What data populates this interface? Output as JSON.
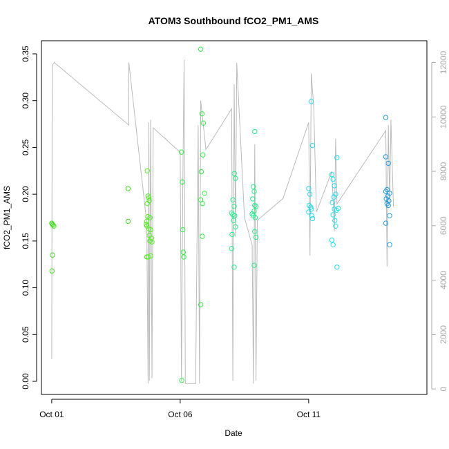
{
  "chart_data": {
    "type": "scatter",
    "title": "ATOM3 Southbound fCO2_PM1_AMS",
    "xlabel": "Date",
    "ylabel": "fCO2_PM1_AMS",
    "x_ticks": [
      "Oct 01",
      "Oct 06",
      "Oct 11"
    ],
    "x_tick_days": [
      1,
      6,
      11
    ],
    "xlim_days": [
      0.6,
      15.6
    ],
    "ylim": [
      -0.014,
      0.364
    ],
    "y_ticks": [
      0.0,
      0.05,
      0.1,
      0.15,
      0.2,
      0.25,
      0.3,
      0.35
    ],
    "y_tick_labels": [
      "0.00",
      "0.05",
      "0.10",
      "0.15",
      "0.20",
      "0.25",
      "0.30",
      "0.35"
    ],
    "secondary_y": {
      "ylim": [
        -200,
        12800
      ],
      "ticks": [
        0,
        2000,
        4000,
        6000,
        8000,
        10000,
        12000
      ],
      "tick_labels": [
        "0",
        "2000",
        "4000",
        "6000",
        "8000",
        "10000",
        "12000"
      ],
      "color": "#aaaaaa"
    },
    "altitude_trace": {
      "color": "#bbbbbb",
      "points": [
        [
          1.0,
          1100
        ],
        [
          1.02,
          11900
        ],
        [
          1.1,
          12000
        ],
        [
          4.0,
          9700
        ],
        [
          4.0,
          12000
        ],
        [
          4.7,
          6100
        ],
        [
          4.75,
          200
        ],
        [
          4.78,
          9800
        ],
        [
          4.8,
          300
        ],
        [
          4.85,
          9900
        ],
        [
          4.9,
          400
        ],
        [
          4.95,
          9600
        ],
        [
          6.0,
          8700
        ],
        [
          6.05,
          300
        ],
        [
          6.1,
          7400
        ],
        [
          6.15,
          12100
        ],
        [
          6.2,
          200
        ],
        [
          6.6,
          200
        ],
        [
          6.7,
          9700
        ],
        [
          6.75,
          200
        ],
        [
          6.8,
          10600
        ],
        [
          7.0,
          8800
        ],
        [
          8.0,
          10300
        ],
        [
          8.05,
          300
        ],
        [
          8.1,
          11200
        ],
        [
          8.15,
          5600
        ],
        [
          8.2,
          12000
        ],
        [
          8.5,
          6300
        ],
        [
          8.8,
          5300
        ],
        [
          8.85,
          200
        ],
        [
          8.9,
          9000
        ],
        [
          8.95,
          300
        ],
        [
          9.0,
          6200
        ],
        [
          10.0,
          7000
        ],
        [
          11.0,
          9800
        ],
        [
          11.05,
          4900
        ],
        [
          11.1,
          11600
        ],
        [
          11.2,
          10300
        ],
        [
          11.3,
          6500
        ],
        [
          11.9,
          8000
        ],
        [
          12.0,
          5800
        ],
        [
          12.05,
          9200
        ],
        [
          12.1,
          6800
        ],
        [
          14.0,
          9500
        ],
        [
          14.05,
          4500
        ],
        [
          14.1,
          9700
        ],
        [
          14.15,
          6800
        ],
        [
          14.2,
          9900
        ],
        [
          14.3,
          6700
        ]
      ]
    },
    "series": [
      {
        "color": "#44dd22",
        "values": [
          [
            1.0,
            0.169
          ],
          [
            1.02,
            0.168
          ],
          [
            1.05,
            0.167
          ],
          [
            1.08,
            0.166
          ],
          [
            1.03,
            0.135
          ],
          [
            1.01,
            0.118
          ],
          [
            3.97,
            0.206
          ],
          [
            3.97,
            0.171
          ]
        ]
      },
      {
        "color": "#55ee22",
        "values": [
          [
            4.72,
            0.225
          ],
          [
            4.75,
            0.198
          ],
          [
            4.78,
            0.196
          ],
          [
            4.8,
            0.193
          ],
          [
            4.72,
            0.19
          ],
          [
            4.74,
            0.176
          ],
          [
            4.82,
            0.175
          ],
          [
            4.7,
            0.171
          ],
          [
            4.68,
            0.168
          ],
          [
            4.7,
            0.166
          ],
          [
            4.78,
            0.163
          ],
          [
            4.85,
            0.162
          ],
          [
            4.8,
            0.156
          ],
          [
            4.88,
            0.153
          ],
          [
            4.82,
            0.15
          ],
          [
            4.9,
            0.149
          ],
          [
            4.7,
            0.133
          ],
          [
            4.75,
            0.133
          ],
          [
            4.85,
            0.134
          ]
        ]
      },
      {
        "color": "#33ee44",
        "values": [
          [
            6.05,
            0.245
          ],
          [
            6.08,
            0.213
          ],
          [
            6.1,
            0.162
          ],
          [
            6.12,
            0.138
          ],
          [
            6.14,
            0.133
          ],
          [
            6.06,
            0.001
          ],
          [
            6.8,
            0.355
          ],
          [
            6.85,
            0.286
          ],
          [
            6.9,
            0.276
          ],
          [
            6.88,
            0.242
          ],
          [
            6.82,
            0.224
          ],
          [
            6.95,
            0.201
          ],
          [
            6.8,
            0.194
          ],
          [
            6.87,
            0.19
          ],
          [
            6.86,
            0.155
          ],
          [
            6.8,
            0.082
          ]
        ]
      },
      {
        "color": "#22ee88",
        "values": [
          [
            8.1,
            0.222
          ],
          [
            8.15,
            0.217
          ],
          [
            8.05,
            0.194
          ],
          [
            8.1,
            0.187
          ],
          [
            8.0,
            0.18
          ],
          [
            8.05,
            0.178
          ],
          [
            8.12,
            0.177
          ],
          [
            8.08,
            0.172
          ],
          [
            8.15,
            0.165
          ],
          [
            8.02,
            0.157
          ],
          [
            8.0,
            0.142
          ],
          [
            8.1,
            0.122
          ],
          [
            8.9,
            0.267
          ],
          [
            8.85,
            0.208
          ],
          [
            8.88,
            0.203
          ],
          [
            8.82,
            0.195
          ],
          [
            8.9,
            0.188
          ],
          [
            8.95,
            0.187
          ],
          [
            8.88,
            0.182
          ],
          [
            8.8,
            0.179
          ],
          [
            8.85,
            0.177
          ],
          [
            8.92,
            0.175
          ],
          [
            8.9,
            0.16
          ],
          [
            8.95,
            0.154
          ],
          [
            8.88,
            0.124
          ]
        ]
      },
      {
        "color": "#22ddee",
        "values": [
          [
            11.1,
            0.299
          ],
          [
            11.15,
            0.252
          ],
          [
            11.0,
            0.206
          ],
          [
            11.05,
            0.2
          ],
          [
            11.02,
            0.188
          ],
          [
            11.08,
            0.186
          ],
          [
            11.1,
            0.184
          ],
          [
            11.0,
            0.181
          ],
          [
            11.12,
            0.177
          ],
          [
            11.15,
            0.174
          ],
          [
            11.9,
            0.221
          ],
          [
            11.95,
            0.216
          ],
          [
            12.0,
            0.209
          ],
          [
            12.05,
            0.2
          ],
          [
            11.98,
            0.197
          ],
          [
            12.1,
            0.239
          ],
          [
            11.92,
            0.191
          ],
          [
            12.0,
            0.184
          ],
          [
            12.08,
            0.183
          ],
          [
            12.15,
            0.185
          ],
          [
            11.95,
            0.178
          ],
          [
            12.02,
            0.172
          ],
          [
            12.05,
            0.166
          ],
          [
            11.9,
            0.151
          ],
          [
            11.95,
            0.146
          ],
          [
            12.1,
            0.122
          ]
        ]
      },
      {
        "color": "#2299dd",
        "values": [
          [
            14.0,
            0.282
          ],
          [
            14.0,
            0.24
          ],
          [
            14.1,
            0.233
          ],
          [
            14.05,
            0.205
          ],
          [
            14.0,
            0.203
          ],
          [
            14.15,
            0.201
          ],
          [
            14.08,
            0.198
          ],
          [
            14.02,
            0.195
          ],
          [
            14.12,
            0.193
          ],
          [
            14.05,
            0.19
          ],
          [
            14.1,
            0.188
          ],
          [
            14.15,
            0.177
          ],
          [
            14.0,
            0.169
          ],
          [
            14.15,
            0.146
          ]
        ]
      }
    ]
  }
}
